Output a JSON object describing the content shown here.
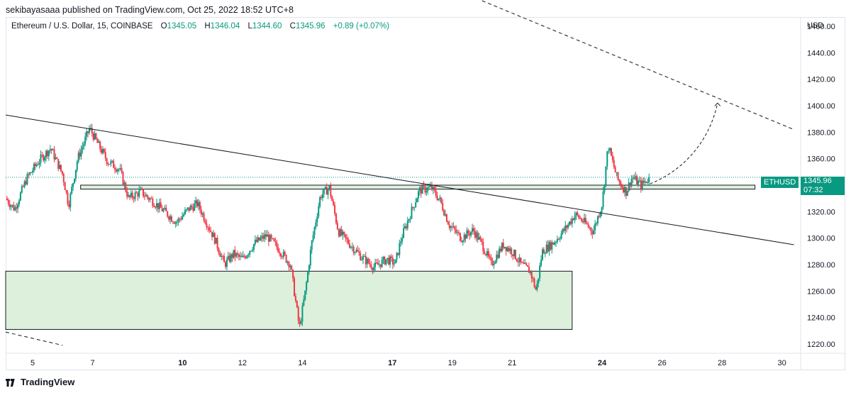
{
  "header": {
    "published": "sekibayasaaa published on TradingView.com, Oct 25, 2022 18:52 UTC+8"
  },
  "legend": {
    "symbol": "Ethereum / U.S. Dollar, 15, COINBASE",
    "o_label": "O",
    "o_value": "1345.05",
    "h_label": "H",
    "h_value": "1346.04",
    "l_label": "L",
    "l_value": "1344.60",
    "c_label": "C",
    "c_value": "1345.96",
    "change": "+0.89 (+0.07%)"
  },
  "price_tag": {
    "ticker": "ETHUSD",
    "price": "1345.96",
    "countdown": "07:32"
  },
  "footer": {
    "brand": "TradingView"
  },
  "colors": {
    "up": "#089981",
    "down": "#f23645",
    "zone_fill": "#dcf0db",
    "trendline": "#131722",
    "price_line": "#089981",
    "text": "#131722"
  },
  "chart_data": {
    "type": "candlestick",
    "interval": "15",
    "currency": "USD",
    "ylim": [
      1213,
      1467
    ],
    "xlim": [
      4.1,
      30.6
    ],
    "y_ticks": [
      1460,
      1440,
      1420,
      1400,
      1380,
      1360,
      1340,
      1320,
      1300,
      1280,
      1260,
      1240,
      1220
    ],
    "y_tick_labels": [
      "1460.00",
      "1440.00",
      "1420.00",
      "1400.00",
      "1380.00",
      "1360.00",
      "1340.00",
      "1320.00",
      "1300.00",
      "1280.00",
      "1260.00",
      "1240.00",
      "1220.00"
    ],
    "x_ticks": [
      {
        "x": 5,
        "label": "5",
        "bold": false
      },
      {
        "x": 7,
        "label": "7",
        "bold": false
      },
      {
        "x": 10,
        "label": "10",
        "bold": true
      },
      {
        "x": 12,
        "label": "12",
        "bold": false
      },
      {
        "x": 14,
        "label": "14",
        "bold": false
      },
      {
        "x": 17,
        "label": "17",
        "bold": true
      },
      {
        "x": 19,
        "label": "19",
        "bold": false
      },
      {
        "x": 21,
        "label": "21",
        "bold": false
      },
      {
        "x": 24,
        "label": "24",
        "bold": true
      },
      {
        "x": 26,
        "label": "26",
        "bold": false
      },
      {
        "x": 28,
        "label": "28",
        "bold": false
      },
      {
        "x": 30,
        "label": "30",
        "bold": false
      }
    ],
    "path_points": [
      [
        4.1,
        1330
      ],
      [
        4.4,
        1322
      ],
      [
        4.8,
        1345
      ],
      [
        5.2,
        1358
      ],
      [
        5.6,
        1368
      ],
      [
        6.0,
        1348
      ],
      [
        6.2,
        1325
      ],
      [
        6.5,
        1360
      ],
      [
        6.9,
        1383
      ],
      [
        7.2,
        1370
      ],
      [
        7.5,
        1358
      ],
      [
        7.9,
        1352
      ],
      [
        8.2,
        1330
      ],
      [
        8.6,
        1335
      ],
      [
        9.0,
        1328
      ],
      [
        9.4,
        1320
      ],
      [
        9.8,
        1312
      ],
      [
        10.2,
        1322
      ],
      [
        10.5,
        1326
      ],
      [
        10.8,
        1312
      ],
      [
        11.1,
        1298
      ],
      [
        11.4,
        1280
      ],
      [
        11.7,
        1288
      ],
      [
        12.0,
        1284
      ],
      [
        12.4,
        1296
      ],
      [
        12.8,
        1302
      ],
      [
        13.2,
        1292
      ],
      [
        13.6,
        1280
      ],
      [
        13.9,
        1232
      ],
      [
        14.1,
        1260
      ],
      [
        14.3,
        1295
      ],
      [
        14.6,
        1332
      ],
      [
        14.9,
        1338
      ],
      [
        15.2,
        1305
      ],
      [
        15.6,
        1295
      ],
      [
        16.0,
        1285
      ],
      [
        16.4,
        1278
      ],
      [
        16.8,
        1284
      ],
      [
        17.1,
        1281
      ],
      [
        17.3,
        1300
      ],
      [
        17.6,
        1318
      ],
      [
        17.9,
        1336
      ],
      [
        18.3,
        1338
      ],
      [
        18.6,
        1328
      ],
      [
        18.9,
        1310
      ],
      [
        19.3,
        1300
      ],
      [
        19.7,
        1306
      ],
      [
        20.0,
        1295
      ],
      [
        20.3,
        1280
      ],
      [
        20.7,
        1295
      ],
      [
        21.0,
        1290
      ],
      [
        21.3,
        1280
      ],
      [
        21.6,
        1275
      ],
      [
        21.8,
        1260
      ],
      [
        22.0,
        1290
      ],
      [
        22.4,
        1297
      ],
      [
        22.8,
        1308
      ],
      [
        23.1,
        1318
      ],
      [
        23.4,
        1312
      ],
      [
        23.7,
        1305
      ],
      [
        24.0,
        1326
      ],
      [
        24.2,
        1370
      ],
      [
        24.5,
        1345
      ],
      [
        24.8,
        1335
      ],
      [
        25.0,
        1346
      ],
      [
        25.3,
        1340
      ],
      [
        25.6,
        1346
      ]
    ],
    "last": {
      "x": 25.6,
      "close": 1345.96
    },
    "drawings": [
      {
        "type": "trendline",
        "style": "solid",
        "from": [
          4.1,
          1393
        ],
        "to": [
          30.4,
          1295
        ]
      },
      {
        "type": "trendline",
        "style": "dashed",
        "from": [
          19.6,
          1483
        ],
        "to": [
          30.4,
          1382
        ]
      },
      {
        "type": "trendline",
        "style": "dashed",
        "from": [
          4.1,
          1229
        ],
        "to": [
          6.0,
          1219
        ]
      },
      {
        "type": "rectangle",
        "name": "resistance-zone",
        "from": [
          6.6,
          1340
        ],
        "to": [
          29.1,
          1337
        ]
      },
      {
        "type": "rectangle",
        "name": "demand-zone",
        "from": [
          4.1,
          1275
        ],
        "to": [
          23.0,
          1231
        ]
      },
      {
        "type": "projection",
        "style": "dashed",
        "points": [
          [
            25.6,
            1341
          ],
          [
            26.8,
            1352
          ],
          [
            27.6,
            1375
          ],
          [
            27.85,
            1402
          ]
        ]
      }
    ]
  }
}
